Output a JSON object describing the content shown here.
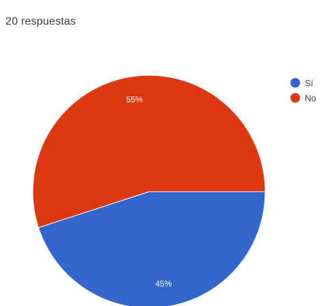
{
  "header": {
    "response_count": "20 respuestas"
  },
  "chart_data": {
    "type": "pie",
    "categories": [
      "Sí",
      "No"
    ],
    "values": [
      45,
      55
    ],
    "value_labels": [
      "45%",
      "55%"
    ],
    "colors": [
      "#3366cc",
      "#dc3912"
    ],
    "legend_position": "right"
  }
}
